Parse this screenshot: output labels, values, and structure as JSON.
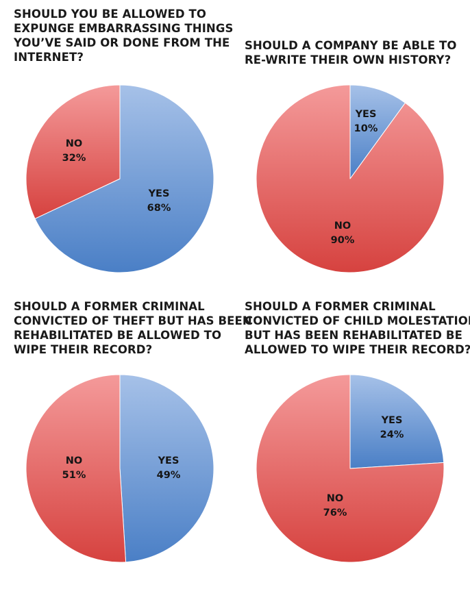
{
  "colors": {
    "yes": "#5f8fd0",
    "no": "#e96060",
    "text": "#1a1a1a"
  },
  "chart_data": [
    {
      "type": "pie",
      "title_lines": [
        "SHOULD YOU BE ALLOWED TO",
        "EXPUNGE EMBARRASSING THINGS",
        "YOU’VE SAID OR DONE FROM THE",
        "INTERNET?"
      ],
      "slices": [
        {
          "label": "YES",
          "value": 68,
          "value_text": "68%"
        },
        {
          "label": "NO",
          "value": 32,
          "value_text": "32%"
        }
      ]
    },
    {
      "type": "pie",
      "title_lines": [
        "SHOULD A COMPANY BE ABLE TO",
        "RE-WRITE THEIR OWN HISTORY?"
      ],
      "slices": [
        {
          "label": "YES",
          "value": 10,
          "value_text": "10%"
        },
        {
          "label": "NO",
          "value": 90,
          "value_text": "90%"
        }
      ]
    },
    {
      "type": "pie",
      "title_lines": [
        "SHOULD A FORMER CRIMINAL",
        "CONVICTED OF THEFT BUT HAS BEEN",
        "REHABILITATED BE ALLOWED TO",
        "WIPE THEIR RECORD?"
      ],
      "slices": [
        {
          "label": "YES",
          "value": 49,
          "value_text": "49%"
        },
        {
          "label": "NO",
          "value": 51,
          "value_text": "51%"
        }
      ]
    },
    {
      "type": "pie",
      "title_lines": [
        "SHOULD A FORMER CRIMINAL",
        "CONVICTED OF CHILD MOLESTATION,",
        "BUT HAS BEEN REHABILITATED BE",
        "ALLOWED TO WIPE THEIR RECORD?"
      ],
      "slices": [
        {
          "label": "YES",
          "value": 24,
          "value_text": "24%"
        },
        {
          "label": "NO",
          "value": 76,
          "value_text": "76%"
        }
      ]
    }
  ]
}
